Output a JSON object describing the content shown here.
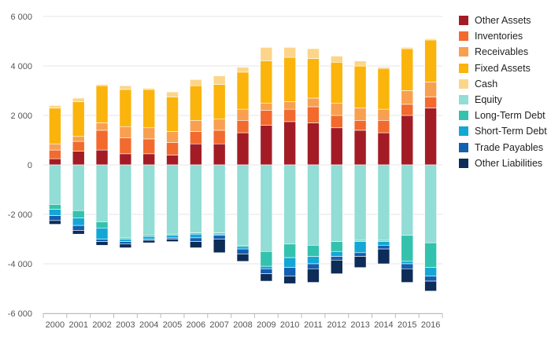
{
  "chart_data": {
    "type": "bar",
    "stacked": true,
    "title": "",
    "xlabel": "",
    "ylabel": "",
    "ylim": [
      -6000,
      6000
    ],
    "yticks": [
      6000,
      4000,
      2000,
      0,
      -2000,
      -4000,
      -6000
    ],
    "ytick_labels": [
      "6 000",
      "4 000",
      "2 000",
      "0",
      "-2 000",
      "-4 000",
      "-6 000"
    ],
    "grid": true,
    "legend_position": "right",
    "categories": [
      "2000",
      "2001",
      "2002",
      "2003",
      "2004",
      "2005",
      "2006",
      "2007",
      "2008",
      "2009",
      "2010",
      "2011",
      "2012",
      "2013",
      "2014",
      "2015",
      "2016"
    ],
    "series": [
      {
        "name": "Other Assets",
        "color": "#a31c25",
        "values": [
          250,
          550,
          600,
          450,
          450,
          400,
          850,
          850,
          1300,
          1600,
          1750,
          1700,
          1500,
          1400,
          1300,
          2000,
          2300
        ]
      },
      {
        "name": "Inventories",
        "color": "#f26a2e",
        "values": [
          350,
          400,
          800,
          650,
          600,
          500,
          500,
          550,
          500,
          600,
          500,
          650,
          500,
          400,
          500,
          450,
          450
        ]
      },
      {
        "name": "Receivables",
        "color": "#f8a04f",
        "values": [
          250,
          200,
          300,
          450,
          450,
          450,
          450,
          450,
          450,
          300,
          300,
          350,
          500,
          500,
          450,
          550,
          600
        ]
      },
      {
        "name": "Fixed Assets",
        "color": "#fbb40c",
        "values": [
          1450,
          1400,
          1500,
          1500,
          1550,
          1400,
          1400,
          1400,
          1500,
          1700,
          1800,
          1600,
          1650,
          1700,
          1650,
          1700,
          1700
        ]
      },
      {
        "name": "Cash",
        "color": "#fdd58a",
        "values": [
          100,
          150,
          50,
          150,
          50,
          200,
          250,
          350,
          200,
          550,
          400,
          400,
          250,
          200,
          50,
          50,
          50
        ]
      },
      {
        "name": "Equity",
        "color": "#92ddd5",
        "values": [
          -1600,
          -1850,
          -2300,
          -2950,
          -2850,
          -2800,
          -2750,
          -2750,
          -3250,
          -3500,
          -3200,
          -3250,
          -3100,
          -3050,
          -3050,
          -2850,
          -3150
        ]
      },
      {
        "name": "Long-Term Debt",
        "color": "#33c2ad",
        "values": [
          -200,
          -300,
          -250,
          -50,
          -50,
          -50,
          -50,
          -50,
          -50,
          -600,
          -550,
          -450,
          -400,
          -50,
          -50,
          -1050,
          -1000
        ]
      },
      {
        "name": "Short-Term Debt",
        "color": "#13a7d6",
        "values": [
          -250,
          -300,
          -450,
          -100,
          -100,
          -100,
          -150,
          -50,
          -100,
          -100,
          -400,
          -300,
          -200,
          -450,
          -150,
          -100,
          -350
        ]
      },
      {
        "name": "Trade Payables",
        "color": "#135fb0",
        "values": [
          -200,
          -200,
          -100,
          -100,
          -50,
          -50,
          -150,
          -150,
          -200,
          -200,
          -350,
          -200,
          -150,
          -150,
          -150,
          -200,
          -200
        ]
      },
      {
        "name": "Other Liabilities",
        "color": "#0d2c57",
        "values": [
          -150,
          -150,
          -150,
          -150,
          -100,
          -100,
          -250,
          -550,
          -300,
          -300,
          -300,
          -550,
          -550,
          -450,
          -600,
          -550,
          -400
        ]
      }
    ]
  }
}
